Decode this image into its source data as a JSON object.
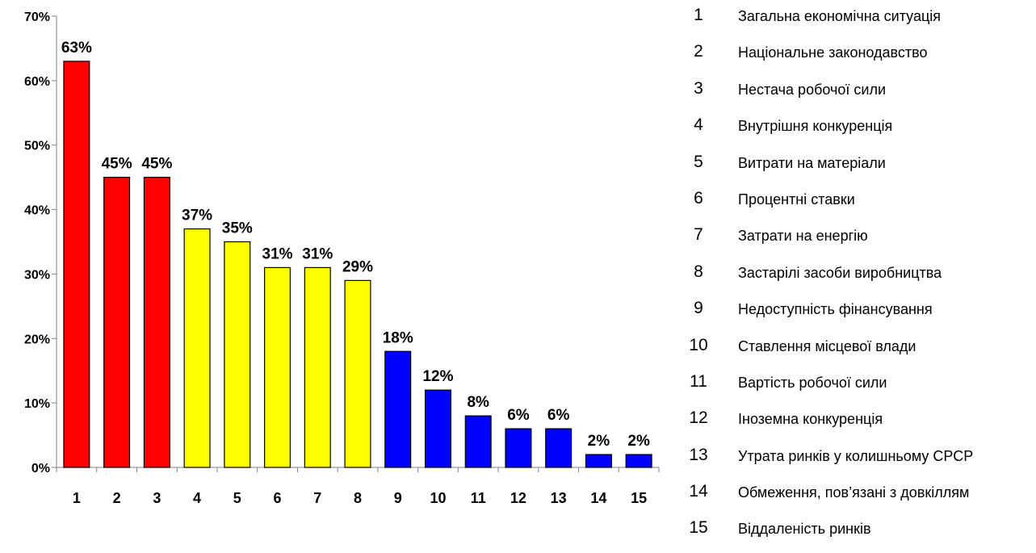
{
  "chart_data": {
    "type": "bar",
    "categories": [
      "1",
      "2",
      "3",
      "4",
      "5",
      "6",
      "7",
      "8",
      "9",
      "10",
      "11",
      "12",
      "13",
      "14",
      "15"
    ],
    "values": [
      63,
      45,
      45,
      37,
      35,
      31,
      31,
      29,
      18,
      12,
      8,
      6,
      6,
      2,
      2
    ],
    "data_labels": [
      "63%",
      "45%",
      "45%",
      "37%",
      "35%",
      "31%",
      "31%",
      "29%",
      "18%",
      "12%",
      "8%",
      "6%",
      "6%",
      "2%",
      "2%"
    ],
    "bar_colors": [
      "#ff0000",
      "#ff0000",
      "#ff0000",
      "#ffff00",
      "#ffff00",
      "#ffff00",
      "#ffff00",
      "#ffff00",
      "#0000ff",
      "#0000ff",
      "#0000ff",
      "#0000ff",
      "#0000ff",
      "#0000ff",
      "#0000ff"
    ],
    "ylim": [
      0,
      70
    ],
    "yticks": [
      0,
      10,
      20,
      30,
      40,
      50,
      60,
      70
    ],
    "ytick_labels": [
      "0%",
      "10%",
      "20%",
      "30%",
      "40%",
      "50%",
      "60%",
      "70%"
    ],
    "grid": false,
    "legend_placement": "right",
    "title": "",
    "xlabel": "",
    "ylabel": ""
  },
  "legend": {
    "items": [
      {
        "num": "1",
        "label": "Загальна економічна ситуація"
      },
      {
        "num": "2",
        "label": "Національне законодавство"
      },
      {
        "num": "3",
        "label": "Нестача робочої сили"
      },
      {
        "num": "4",
        "label": "Внутрішня конкуренція"
      },
      {
        "num": "5",
        "label": "Витрати на матеріали"
      },
      {
        "num": "6",
        "label": "Процентні ставки"
      },
      {
        "num": "7",
        "label": "Затрати на енергію"
      },
      {
        "num": "8",
        "label": "Застарілі засоби виробництва"
      },
      {
        "num": "9",
        "label": "Недоступність фінансування"
      },
      {
        "num": "10",
        "label": "Ставлення місцевої влади"
      },
      {
        "num": "11",
        "label": "Вартість робочої сили"
      },
      {
        "num": "12",
        "label": "Іноземна конкуренція"
      },
      {
        "num": "13",
        "label": "Утрата ринків у колишньому СРСР"
      },
      {
        "num": "14",
        "label": "Обмеження, пов’язані з довкіллям"
      },
      {
        "num": "15",
        "label": "Віддаленість ринків"
      }
    ]
  }
}
